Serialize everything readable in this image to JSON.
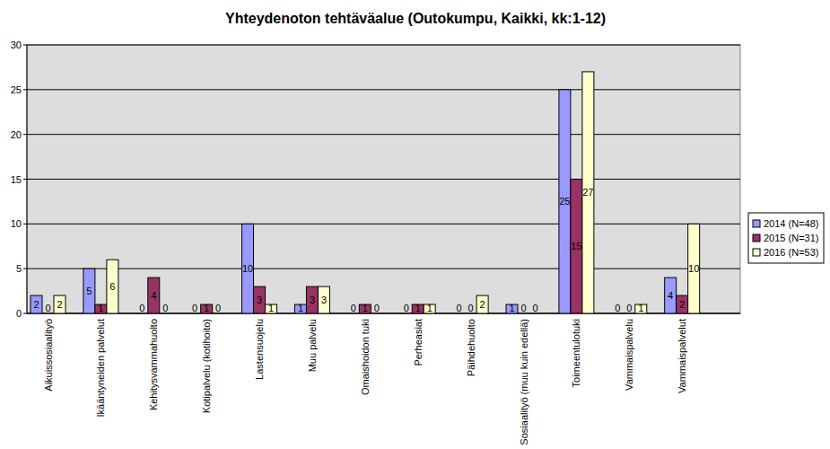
{
  "chart_data": {
    "type": "bar",
    "title": "Yhteydenoton tehtäväalue (Outokumpu, Kaikki, kk:1-12)",
    "categories": [
      "Aikuissosiaalityö",
      "Ikääntyneiden palvelut",
      "Kehitysvammahuolto",
      "Kotipalvelu (kotihoito)",
      "Lastensuojelu",
      "Muu palvelu",
      "Omaishoidon tuki",
      "Perheasiat",
      "Päihdehuolto",
      "Sosiaalityö (muu kuin edellä)",
      "Toimeentulotuki",
      "Vammaispalvelu",
      "Vammaispalvelut"
    ],
    "series": [
      {
        "name": "2014 (N=48)",
        "color": "#9999ff",
        "values": [
          2,
          5,
          0,
          0,
          10,
          1,
          0,
          0,
          0,
          1,
          25,
          0,
          4
        ]
      },
      {
        "name": "2015 (N=31)",
        "color": "#993366",
        "values": [
          0,
          1,
          4,
          1,
          3,
          3,
          1,
          1,
          0,
          0,
          15,
          0,
          2
        ]
      },
      {
        "name": "2016 (N=53)",
        "color": "#ffffcc",
        "values": [
          2,
          6,
          0,
          0,
          1,
          3,
          0,
          1,
          2,
          0,
          27,
          1,
          10
        ]
      }
    ],
    "ylim": [
      0,
      30
    ],
    "yticks": [
      0,
      5,
      10,
      15,
      20,
      25,
      30
    ],
    "grid": true,
    "legend": "right",
    "data_labels": true
  }
}
